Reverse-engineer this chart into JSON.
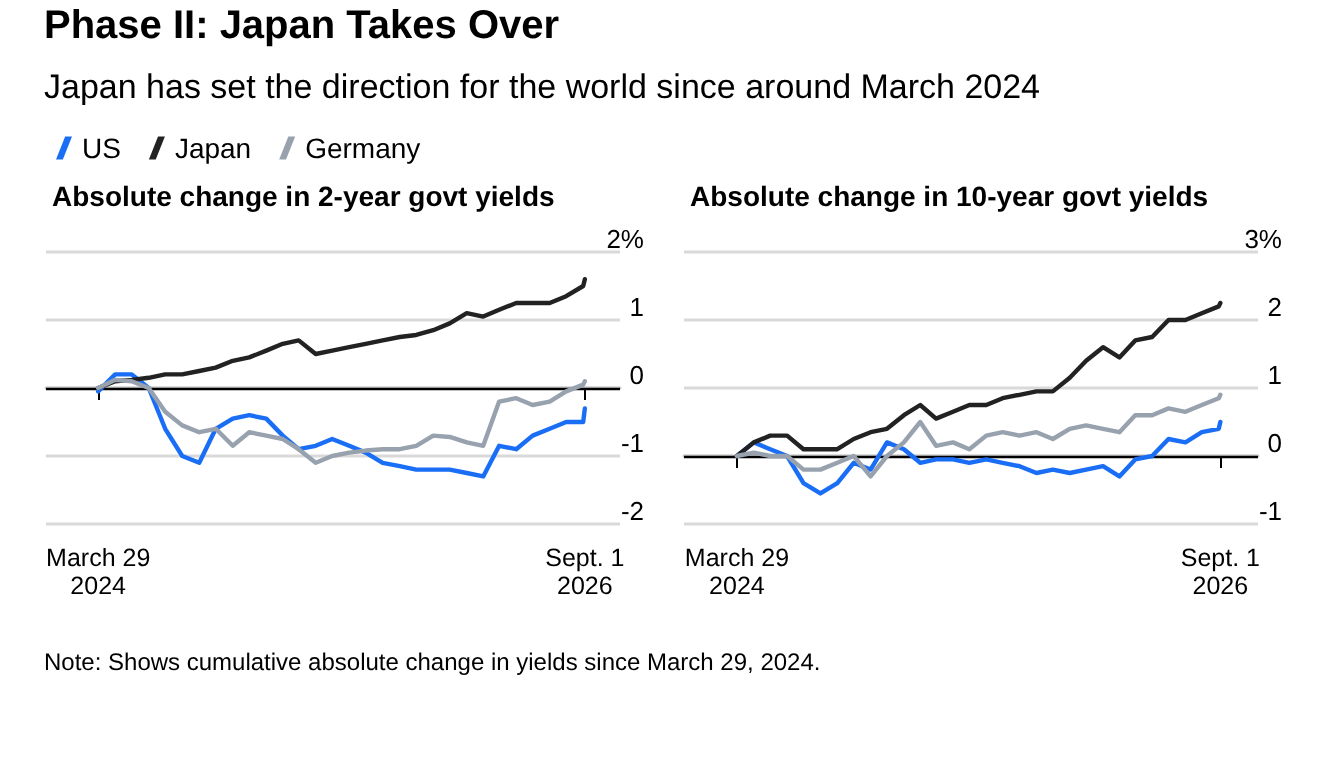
{
  "chart_data": [
    {
      "type": "other",
      "title": "Phase II: Japan Takes Over",
      "subtitle": "Japan has set the direction for the world since around March 2024",
      "annotations": [
        "Note: Shows cumulative absolute change in yields since March 29, 2024."
      ]
    },
    {
      "type": "line",
      "title": "Absolute change in 2-year govt yields",
      "legend": "top",
      "grid": "y",
      "marker": "none",
      "line_style": "solid",
      "x": [
        "2024-03-29",
        "2024-04-29",
        "2024-05-29",
        "2024-06-29",
        "2024-07-29",
        "2024-08-29",
        "2024-09-29",
        "2024-10-29",
        "2024-11-29",
        "2024-12-29",
        "2025-01-29",
        "2025-02-28",
        "2025-03-29",
        "2025-04-29",
        "2025-05-29",
        "2025-06-29",
        "2025-07-29",
        "2025-08-29",
        "2025-09-29",
        "2025-10-29",
        "2025-11-29",
        "2025-12-29",
        "2026-01-29",
        "2026-02-28",
        "2026-03-29",
        "2026-04-29",
        "2026-05-29",
        "2026-06-29",
        "2026-07-29",
        "2026-08-29",
        "2026-09-01"
      ],
      "xlim": [
        "2023-12-25",
        "2026-11-04"
      ],
      "xticks": [
        {
          "value": "2024-03-29",
          "label": "March 29\n2024"
        },
        {
          "value": "2026-09-01",
          "label": "Sept. 1\n2026"
        }
      ],
      "ylim": [
        -2,
        2
      ],
      "yticks": [
        {
          "value": 2,
          "label": "2%"
        },
        1,
        0,
        -1,
        -2
      ],
      "ref_lines": [
        {
          "axis": "y",
          "value": 0,
          "color": "#000000"
        }
      ],
      "series": [
        {
          "name": "US",
          "color": "#1a6ef5",
          "values": [
            -0.05,
            0.2,
            0.2,
            0.0,
            -0.6,
            -1.0,
            -1.1,
            -0.6,
            -0.45,
            -0.4,
            -0.45,
            -0.7,
            -0.9,
            -0.85,
            -0.75,
            -0.85,
            -0.95,
            -1.1,
            -1.15,
            -1.2,
            -1.2,
            -1.2,
            -1.25,
            -1.3,
            -0.85,
            -0.9,
            -0.7,
            -0.6,
            -0.5,
            -0.5,
            -0.3
          ]
        },
        {
          "name": "Japan",
          "color": "#222222",
          "values": [
            0,
            0.1,
            0.12,
            0.15,
            0.2,
            0.2,
            0.25,
            0.3,
            0.4,
            0.45,
            0.55,
            0.65,
            0.7,
            0.5,
            0.55,
            0.6,
            0.65,
            0.7,
            0.75,
            0.78,
            0.85,
            0.95,
            1.1,
            1.05,
            1.15,
            1.25,
            1.25,
            1.25,
            1.35,
            1.5,
            1.6
          ]
        },
        {
          "name": "Germany",
          "color": "#98a2ae",
          "values": [
            0,
            0.12,
            0.1,
            0.0,
            -0.35,
            -0.55,
            -0.65,
            -0.6,
            -0.85,
            -0.65,
            -0.7,
            -0.75,
            -0.9,
            -1.1,
            -1.0,
            -0.95,
            -0.92,
            -0.9,
            -0.9,
            -0.85,
            -0.7,
            -0.72,
            -0.8,
            -0.85,
            -0.2,
            -0.15,
            -0.25,
            -0.2,
            -0.05,
            0.05,
            0.1
          ]
        }
      ]
    },
    {
      "type": "line",
      "title": "Absolute change in 10-year govt yields",
      "grid": "y",
      "marker": "none",
      "line_style": "solid",
      "x": [
        "2024-03-29",
        "2024-04-29",
        "2024-05-29",
        "2024-06-29",
        "2024-07-29",
        "2024-08-29",
        "2024-09-29",
        "2024-10-29",
        "2024-11-29",
        "2024-12-29",
        "2025-01-29",
        "2025-02-28",
        "2025-03-29",
        "2025-04-29",
        "2025-05-29",
        "2025-06-29",
        "2025-07-29",
        "2025-08-29",
        "2025-09-29",
        "2025-10-29",
        "2025-11-29",
        "2025-12-29",
        "2026-01-29",
        "2026-02-28",
        "2026-03-29",
        "2026-04-29",
        "2026-05-29",
        "2026-06-29",
        "2026-07-29",
        "2026-08-29",
        "2026-09-01"
      ],
      "xlim": [
        "2023-12-23",
        "2026-11-09"
      ],
      "xticks": [
        {
          "value": "2024-03-29",
          "label": "March 29\n2024"
        },
        {
          "value": "2026-09-01",
          "label": "Sept. 1\n2026"
        }
      ],
      "ylim": [
        -1,
        3
      ],
      "yticks": [
        {
          "value": 3,
          "label": "3%"
        },
        2,
        1,
        0,
        -1
      ],
      "ref_lines": [
        {
          "axis": "y",
          "value": 0,
          "color": "#000000"
        }
      ],
      "series": [
        {
          "color": "#1a6ef5",
          "values": [
            0,
            0.2,
            0.1,
            0.0,
            -0.4,
            -0.55,
            -0.4,
            -0.1,
            -0.2,
            0.2,
            0.1,
            -0.1,
            -0.05,
            -0.05,
            -0.1,
            -0.05,
            -0.1,
            -0.15,
            -0.25,
            -0.2,
            -0.25,
            -0.2,
            -0.15,
            -0.3,
            -0.05,
            0.0,
            0.25,
            0.2,
            0.35,
            0.4,
            0.5
          ]
        },
        {
          "color": "#222222",
          "values": [
            0,
            0.2,
            0.3,
            0.3,
            0.1,
            0.1,
            0.1,
            0.25,
            0.35,
            0.4,
            0.6,
            0.75,
            0.55,
            0.65,
            0.75,
            0.75,
            0.85,
            0.9,
            0.95,
            0.95,
            1.15,
            1.4,
            1.6,
            1.45,
            1.7,
            1.75,
            2.0,
            2.0,
            2.1,
            2.2,
            2.25
          ]
        },
        {
          "color": "#98a2ae",
          "values": [
            0,
            0.05,
            0.0,
            0.0,
            -0.2,
            -0.2,
            -0.1,
            0.0,
            -0.3,
            0.0,
            0.2,
            0.5,
            0.15,
            0.2,
            0.1,
            0.3,
            0.35,
            0.3,
            0.35,
            0.25,
            0.4,
            0.45,
            0.4,
            0.35,
            0.6,
            0.6,
            0.7,
            0.65,
            0.75,
            0.85,
            0.9
          ]
        }
      ]
    }
  ]
}
